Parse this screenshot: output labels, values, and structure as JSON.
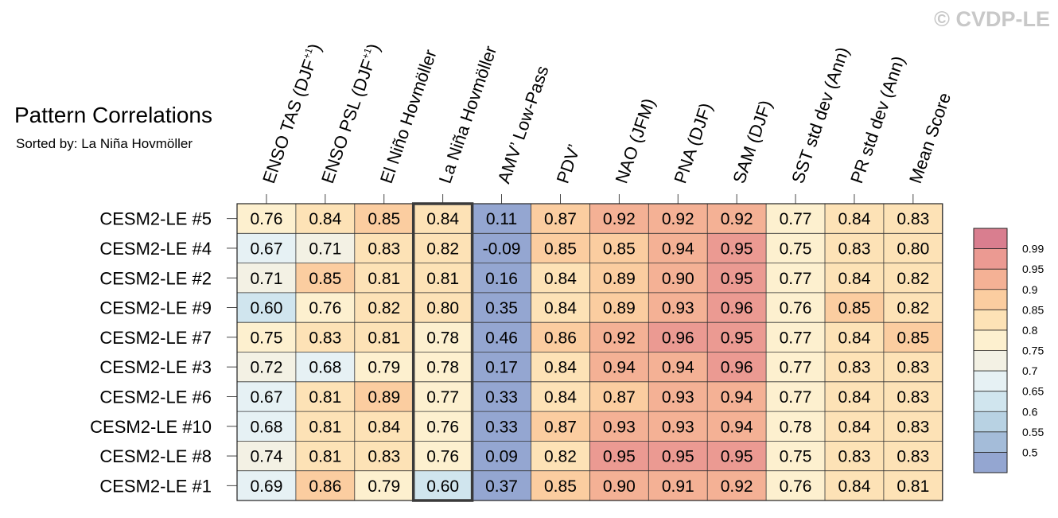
{
  "watermark": "© CVDP-LE",
  "chart_data": {
    "type": "heatmap",
    "title": "Pattern Correlations",
    "subtitle": "Sorted by: La Niña Hovmöller",
    "columns": [
      "ENSO TAS (DJF+1)",
      "ENSO PSL (DJF+1)",
      "El Niño Hovmöller",
      "La Niña Hovmöller",
      "AMV’ Low-Pass",
      "PDV’",
      "NAO (JFM)",
      "PNA (DJF)",
      "SAM (DJF)",
      "SST std dev (Ann)",
      "PR std dev (Ann)",
      "Mean Score"
    ],
    "rows": [
      "CESM2-LE #5",
      "CESM2-LE #4",
      "CESM2-LE #2",
      "CESM2-LE #9",
      "CESM2-LE #7",
      "CESM2-LE #3",
      "CESM2-LE #6",
      "CESM2-LE #10",
      "CESM2-LE #8",
      "CESM2-LE #1"
    ],
    "values": [
      [
        "0.76",
        "0.84",
        "0.85",
        "0.84",
        "0.11",
        "0.87",
        "0.92",
        "0.92",
        "0.92",
        "0.77",
        "0.84",
        "0.83"
      ],
      [
        "0.67",
        "0.71",
        "0.83",
        "0.82",
        "-0.09",
        "0.85",
        "0.85",
        "0.94",
        "0.95",
        "0.75",
        "0.83",
        "0.80"
      ],
      [
        "0.71",
        "0.85",
        "0.81",
        "0.81",
        "0.16",
        "0.84",
        "0.89",
        "0.90",
        "0.95",
        "0.77",
        "0.84",
        "0.82"
      ],
      [
        "0.60",
        "0.76",
        "0.82",
        "0.80",
        "0.35",
        "0.84",
        "0.89",
        "0.93",
        "0.96",
        "0.76",
        "0.85",
        "0.82"
      ],
      [
        "0.75",
        "0.83",
        "0.81",
        "0.78",
        "0.46",
        "0.86",
        "0.92",
        "0.96",
        "0.95",
        "0.77",
        "0.84",
        "0.85"
      ],
      [
        "0.72",
        "0.68",
        "0.79",
        "0.78",
        "0.17",
        "0.84",
        "0.94",
        "0.94",
        "0.96",
        "0.77",
        "0.83",
        "0.83"
      ],
      [
        "0.67",
        "0.81",
        "0.89",
        "0.77",
        "0.33",
        "0.84",
        "0.87",
        "0.93",
        "0.94",
        "0.77",
        "0.84",
        "0.83"
      ],
      [
        "0.68",
        "0.81",
        "0.84",
        "0.76",
        "0.33",
        "0.87",
        "0.93",
        "0.93",
        "0.94",
        "0.78",
        "0.84",
        "0.83"
      ],
      [
        "0.74",
        "0.81",
        "0.83",
        "0.76",
        "0.09",
        "0.82",
        "0.95",
        "0.95",
        "0.95",
        "0.75",
        "0.83",
        "0.83"
      ],
      [
        "0.69",
        "0.86",
        "0.79",
        "0.60",
        "0.37",
        "0.85",
        "0.90",
        "0.91",
        "0.92",
        "0.76",
        "0.84",
        "0.81"
      ]
    ],
    "highlight_column": "La Niña Hovmöller",
    "colorbar": {
      "levels": [
        0.5,
        0.55,
        0.6,
        0.65,
        0.7,
        0.75,
        0.8,
        0.85,
        0.9,
        0.95,
        0.99
      ],
      "tick_labels": [
        "0.5",
        "0.55",
        "0.6",
        "0.65",
        "0.7",
        "0.75",
        "0.8",
        "0.85",
        "0.9",
        "0.95",
        "0.99"
      ],
      "colors": [
        "#94a6d1",
        "#a4bcd9",
        "#b8d2e3",
        "#d0e5ee",
        "#e6f1f4",
        "#f3f1e4",
        "#fdf0cf",
        "#fde2b6",
        "#fbcda0",
        "#f4b195",
        "#eb9a92",
        "#d97e8f"
      ]
    }
  }
}
